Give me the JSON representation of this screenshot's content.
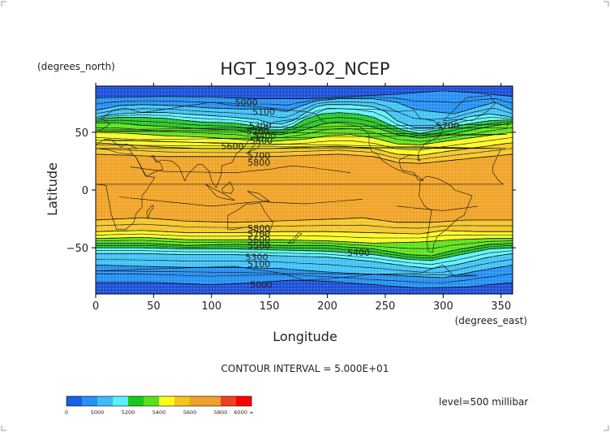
{
  "chart_data": {
    "type": "heatmap",
    "title": "HGT_1993-02_NCEP",
    "xlabel": "Longitude",
    "ylabel": "Latitude",
    "x_units": "(degrees_east)",
    "y_units": "(degrees_north)",
    "xlim": [
      0,
      360
    ],
    "ylim": [
      -90,
      90
    ],
    "x_ticks": [
      0,
      50,
      100,
      150,
      200,
      250,
      300,
      350
    ],
    "y_ticks": [
      50,
      0,
      -50
    ],
    "x_tick_labels": [
      "0",
      "50",
      "100",
      "150",
      "200",
      "250",
      "300",
      "350"
    ],
    "y_tick_labels": [
      "50",
      "0",
      "−50"
    ],
    "grid": true,
    "contour_interval_text": "CONTOUR INTERVAL = 5.000E+01",
    "level_text": "level=500 millibar",
    "contour_labels": [
      {
        "text": "5000",
        "x": 130,
        "y": 76
      },
      {
        "text": "5100",
        "x": 145,
        "y": 68
      },
      {
        "text": "5200",
        "x": 140,
        "y": 51
      },
      {
        "text": "5300",
        "x": 142,
        "y": 56
      },
      {
        "text": "5400",
        "x": 146,
        "y": 47
      },
      {
        "text": "5500",
        "x": 143,
        "y": 43
      },
      {
        "text": "5600",
        "x": 118,
        "y": 38
      },
      {
        "text": "5700",
        "x": 141,
        "y": 30
      },
      {
        "text": "5800",
        "x": 141,
        "y": 24
      },
      {
        "text": "5700",
        "x": 304,
        "y": 56
      },
      {
        "text": "5800",
        "x": 141,
        "y": -33
      },
      {
        "text": "5700",
        "x": 141,
        "y": -38
      },
      {
        "text": "5600",
        "x": 141,
        "y": -43
      },
      {
        "text": "5500",
        "x": 141,
        "y": -48
      },
      {
        "text": "5400",
        "x": 227,
        "y": -54
      },
      {
        "text": "5300",
        "x": 139,
        "y": -58
      },
      {
        "text": "5100",
        "x": 141,
        "y": -64
      },
      {
        "text": "5000",
        "x": 143,
        "y": -82
      }
    ],
    "legend": {
      "tick_labels": [
        "0",
        "5000",
        "5200",
        "5400",
        "5600",
        "5800",
        "6000",
        "∞"
      ],
      "colors": [
        "#1b5ee6",
        "#2491f5",
        "#3bbcf4",
        "#58f0fe",
        "#18c91a",
        "#56e21a",
        "#fcfc18",
        "#f4c51a",
        "#f0a22a",
        "#f0a22a",
        "#ee4022",
        "#ff0000"
      ]
    },
    "bands": [
      {
        "name": "<5000",
        "color": "#1b4ed8"
      },
      {
        "name": "5000-5200",
        "color": "#2390f2"
      },
      {
        "name": "5200-5400",
        "color": "#40c3f6"
      },
      {
        "name": "5300",
        "color": "#5ff3fd"
      },
      {
        "name": "5400-5600",
        "color": "#27c62a"
      },
      {
        "name": "5500",
        "color": "#5de21c"
      },
      {
        "name": "5600-5800",
        "color": "#fbfa26"
      },
      {
        "name": "5700",
        "color": "#f5c52a"
      },
      {
        "name": "5800-6000",
        "color": "#f0a326"
      }
    ],
    "boundaries": [
      {
        "comment_bands": "b1|b2 (5000)",
        "lat_at_lon": [
          [
            0,
            80
          ],
          [
            60,
            81
          ],
          [
            100,
            80.5
          ],
          [
            140,
            79
          ],
          [
            180,
            79
          ],
          [
            220,
            81
          ],
          [
            260,
            83
          ],
          [
            300,
            86
          ],
          [
            330,
            84
          ],
          [
            360,
            81
          ]
        ]
      },
      {
        "lat_at_lon": [
          [
            0,
            69
          ],
          [
            20,
            73
          ],
          [
            40,
            74
          ],
          [
            70,
            73
          ],
          [
            100,
            71
          ],
          [
            130,
            70
          ],
          [
            150,
            70
          ],
          [
            165,
            68
          ],
          [
            175,
            72
          ],
          [
            190,
            77
          ],
          [
            210,
            79
          ],
          [
            240,
            79
          ],
          [
            260,
            76
          ],
          [
            275,
            70
          ],
          [
            290,
            68
          ],
          [
            310,
            66
          ],
          [
            330,
            72
          ],
          [
            345,
            76
          ],
          [
            360,
            69
          ]
        ]
      },
      {
        "lat_at_lon": [
          [
            0,
            63
          ],
          [
            20,
            66
          ],
          [
            40,
            67
          ],
          [
            60,
            67
          ],
          [
            90,
            65
          ],
          [
            120,
            63
          ],
          [
            140,
            61
          ],
          [
            150,
            58
          ],
          [
            160,
            57
          ],
          [
            170,
            60
          ],
          [
            180,
            66
          ],
          [
            190,
            72
          ],
          [
            200,
            74
          ],
          [
            220,
            74
          ],
          [
            240,
            72
          ],
          [
            250,
            68
          ],
          [
            260,
            60
          ],
          [
            275,
            54
          ],
          [
            290,
            54
          ],
          [
            305,
            58
          ],
          [
            320,
            63
          ],
          [
            340,
            66
          ],
          [
            360,
            63
          ]
        ]
      },
      {
        "lat_at_lon": [
          [
            0,
            61
          ],
          [
            20,
            63
          ],
          [
            40,
            63
          ],
          [
            60,
            62
          ],
          [
            90,
            59
          ],
          [
            120,
            58
          ],
          [
            140,
            55
          ],
          [
            150,
            52
          ],
          [
            160,
            52
          ],
          [
            170,
            55
          ],
          [
            180,
            61
          ],
          [
            195,
            66
          ],
          [
            210,
            67
          ],
          [
            225,
            66
          ],
          [
            240,
            63
          ],
          [
            255,
            56
          ],
          [
            265,
            52
          ],
          [
            280,
            49
          ],
          [
            300,
            53
          ],
          [
            320,
            57
          ],
          [
            340,
            60
          ],
          [
            360,
            61
          ]
        ]
      },
      {
        "lat_at_lon": [
          [
            0,
            58
          ],
          [
            20,
            58
          ],
          [
            40,
            56
          ],
          [
            60,
            55
          ],
          [
            90,
            53
          ],
          [
            120,
            52
          ],
          [
            140,
            49
          ],
          [
            160,
            48
          ],
          [
            180,
            52
          ],
          [
            195,
            57
          ],
          [
            210,
            59
          ],
          [
            230,
            57
          ],
          [
            245,
            53
          ],
          [
            260,
            48
          ],
          [
            280,
            45
          ],
          [
            300,
            47
          ],
          [
            320,
            51
          ],
          [
            340,
            55
          ],
          [
            360,
            58
          ]
        ]
      },
      {
        "lat_at_lon": [
          [
            0,
            50
          ],
          [
            30,
            49
          ],
          [
            60,
            47
          ],
          [
            90,
            46
          ],
          [
            120,
            44
          ],
          [
            150,
            42
          ],
          [
            180,
            44
          ],
          [
            200,
            47
          ],
          [
            220,
            48
          ],
          [
            240,
            45
          ],
          [
            260,
            40
          ],
          [
            280,
            39
          ],
          [
            300,
            42
          ],
          [
            330,
            46
          ],
          [
            360,
            50
          ]
        ]
      },
      {
        "lat_at_lon": [
          [
            0,
            41
          ],
          [
            30,
            39
          ],
          [
            60,
            37
          ],
          [
            90,
            36
          ],
          [
            120,
            36
          ],
          [
            150,
            36
          ],
          [
            180,
            37
          ],
          [
            210,
            38
          ],
          [
            240,
            36
          ],
          [
            260,
            31
          ],
          [
            280,
            30
          ],
          [
            300,
            33
          ],
          [
            330,
            37
          ],
          [
            360,
            41
          ]
        ]
      },
      {
        "lat_at_lon": [
          [
            0,
            31
          ],
          [
            30,
            30
          ],
          [
            60,
            29
          ],
          [
            90,
            29
          ],
          [
            120,
            29
          ],
          [
            150,
            29
          ],
          [
            180,
            30
          ],
          [
            210,
            31
          ],
          [
            240,
            29
          ],
          [
            260,
            24
          ],
          [
            280,
            23
          ],
          [
            310,
            26
          ],
          [
            340,
            29
          ],
          [
            360,
            31
          ]
        ]
      },
      {
        "lat_at_lon": [
          [
            0,
            -26
          ],
          [
            40,
            -24
          ],
          [
            80,
            -27
          ],
          [
            120,
            -28
          ],
          [
            150,
            -27
          ],
          [
            180,
            -26
          ],
          [
            210,
            -25
          ],
          [
            230,
            -24
          ],
          [
            260,
            -28
          ],
          [
            290,
            -28
          ],
          [
            320,
            -26
          ],
          [
            360,
            -26
          ]
        ]
      },
      {
        "lat_at_lon": [
          [
            0,
            -36
          ],
          [
            40,
            -35
          ],
          [
            80,
            -37
          ],
          [
            120,
            -37
          ],
          [
            160,
            -36
          ],
          [
            200,
            -36
          ],
          [
            240,
            -37
          ],
          [
            280,
            -38
          ],
          [
            300,
            -35
          ],
          [
            330,
            -36
          ],
          [
            360,
            -36
          ]
        ]
      },
      {
        "lat_at_lon": [
          [
            0,
            -42
          ],
          [
            40,
            -41
          ],
          [
            80,
            -43
          ],
          [
            120,
            -43
          ],
          [
            160,
            -43
          ],
          [
            200,
            -44
          ],
          [
            240,
            -46
          ],
          [
            280,
            -45
          ],
          [
            310,
            -43
          ],
          [
            340,
            -42
          ],
          [
            360,
            -42
          ]
        ]
      },
      {
        "lat_at_lon": [
          [
            0,
            -46
          ],
          [
            40,
            -46
          ],
          [
            80,
            -48
          ],
          [
            120,
            -47
          ],
          [
            160,
            -48
          ],
          [
            200,
            -48
          ],
          [
            240,
            -51
          ],
          [
            270,
            -56
          ],
          [
            290,
            -57
          ],
          [
            310,
            -52
          ],
          [
            340,
            -47
          ],
          [
            360,
            -46
          ]
        ]
      },
      {
        "lat_at_lon": [
          [
            0,
            -50
          ],
          [
            40,
            -50
          ],
          [
            80,
            -51
          ],
          [
            120,
            -51
          ],
          [
            160,
            -52
          ],
          [
            200,
            -53
          ],
          [
            240,
            -56
          ],
          [
            270,
            -60
          ],
          [
            290,
            -61
          ],
          [
            310,
            -57
          ],
          [
            340,
            -51
          ],
          [
            360,
            -50
          ]
        ]
      },
      {
        "lat_at_lon": [
          [
            0,
            -55
          ],
          [
            40,
            -55
          ],
          [
            80,
            -56
          ],
          [
            120,
            -56
          ],
          [
            160,
            -57
          ],
          [
            200,
            -58
          ],
          [
            240,
            -62
          ],
          [
            270,
            -66
          ],
          [
            290,
            -68
          ],
          [
            310,
            -65
          ],
          [
            340,
            -58
          ],
          [
            360,
            -55
          ]
        ]
      },
      {
        "lat_at_lon": [
          [
            0,
            -65
          ],
          [
            40,
            -66
          ],
          [
            80,
            -67
          ],
          [
            120,
            -67
          ],
          [
            160,
            -68
          ],
          [
            200,
            -71
          ],
          [
            240,
            -73
          ],
          [
            280,
            -75
          ],
          [
            300,
            -76
          ],
          [
            330,
            -70
          ],
          [
            360,
            -65
          ]
        ]
      },
      {
        "lat_at_lon": [
          [
            0,
            -80
          ],
          [
            50,
            -80
          ],
          [
            100,
            -82
          ],
          [
            140,
            -80
          ],
          [
            170,
            -78
          ],
          [
            200,
            -79
          ],
          [
            240,
            -82
          ],
          [
            280,
            -85
          ],
          [
            320,
            -84
          ],
          [
            360,
            -80
          ]
        ]
      }
    ]
  }
}
